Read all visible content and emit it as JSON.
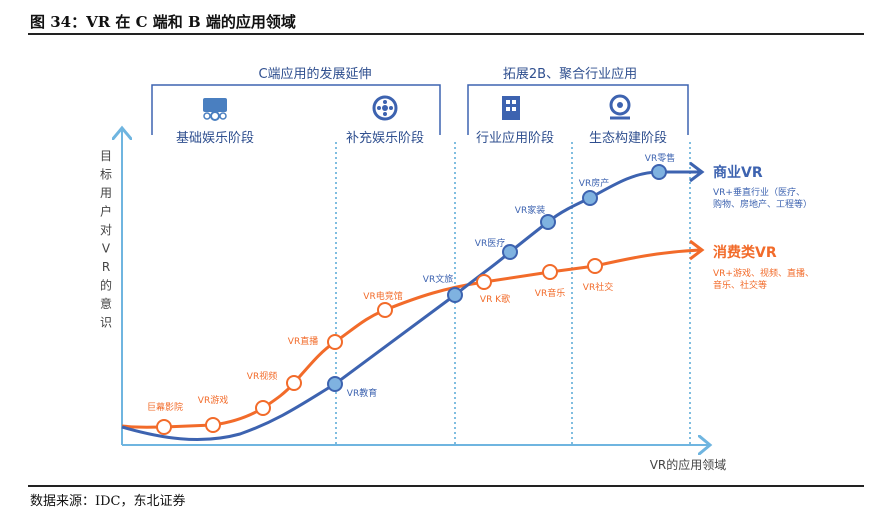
{
  "title": "图 34：VR 在 C 端和 B 端的应用领域",
  "source": "数据来源：IDC，东北证券",
  "brackets": {
    "c": "C端应用的发展延伸",
    "b": "拓展2B、聚合行业应用"
  },
  "stages": [
    "基础娱乐阶段",
    "补充娱乐阶段",
    "行业应用阶段",
    "生态构建阶段"
  ],
  "axes": {
    "y_label": "目标用户对VR的意识",
    "x_label": "VR的应用领域"
  },
  "consumer": {
    "name": "消费类VR",
    "desc1": "VR+游戏、视频、直播、",
    "desc2": "音乐、社交等",
    "color": "#f26b2a",
    "points": [
      "巨幕影院",
      "VR游戏",
      "VR视频",
      "VR直播",
      "VR电竞馆",
      "VR K歌",
      "VR音乐",
      "VR社交"
    ]
  },
  "business": {
    "name": "商业VR",
    "desc1": "VR+垂直行业（医疗、",
    "desc2": "购物、房地产、工程等）",
    "color": "#3d63b0",
    "points": [
      "VR教育",
      "VR文旅",
      "VR医疗",
      "VR家装",
      "VR房产",
      "VR零售"
    ]
  }
}
